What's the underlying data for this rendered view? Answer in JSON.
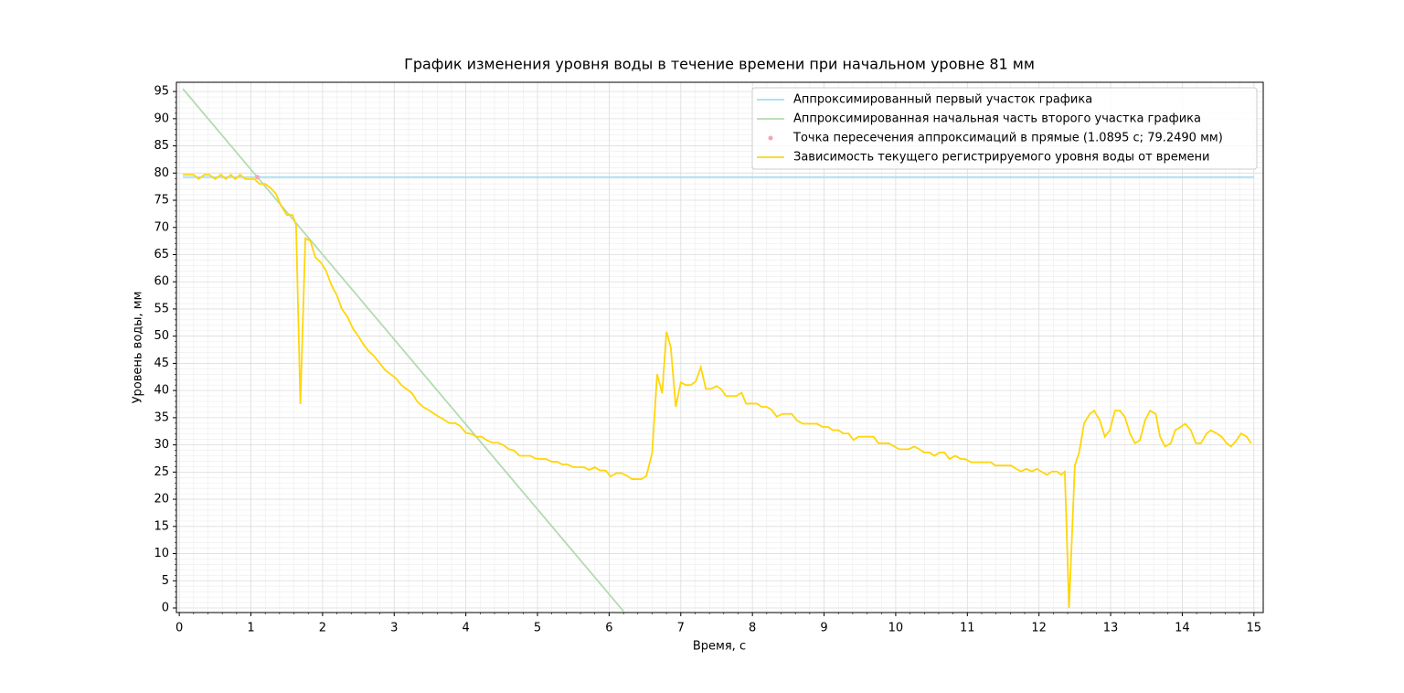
{
  "chart_data": {
    "type": "line",
    "title": "График изменения уровня воды в течение времени при начальном уровне 81 мм",
    "xlabel": "Время, с",
    "ylabel": "Уровень воды, мм",
    "xlim": [
      -0.04,
      15.13
    ],
    "ylim": [
      -0.84,
      96.7
    ],
    "xticks": [
      0,
      1,
      2,
      3,
      4,
      5,
      6,
      7,
      8,
      9,
      10,
      11,
      12,
      13,
      14,
      15
    ],
    "yticks": [
      0,
      5,
      10,
      15,
      20,
      25,
      30,
      35,
      40,
      45,
      50,
      55,
      60,
      65,
      70,
      75,
      80,
      85,
      90,
      95
    ],
    "grid": true,
    "minor_grid": true,
    "legend": "upper right",
    "series": [
      {
        "name": "Аппроксимированный первый участок графика",
        "kind": "line",
        "color": "#a6dcef",
        "x": [
          0.05,
          15.0
        ],
        "values": [
          79.249,
          79.249
        ]
      },
      {
        "name": "Аппроксимированная начальная часть второго участка графика",
        "kind": "line",
        "color": "#b3dbb0",
        "x": [
          0.05,
          6.2
        ],
        "values": [
          95.5,
          -0.6
        ]
      },
      {
        "name": "Точка пересечения аппроксимаций в прямые (1.0895 с; 79.2490 мм)",
        "kind": "scatter",
        "color": "#f2a7b4",
        "x": [
          1.0895
        ],
        "values": [
          79.249
        ]
      },
      {
        "name": "Зависимость текущего регистрируемого уровня воды от времени",
        "kind": "line",
        "color": "#ffd60a",
        "x": [
          0.05,
          0.15,
          0.2,
          0.27,
          0.35,
          0.42,
          0.5,
          0.58,
          0.65,
          0.72,
          0.78,
          0.85,
          0.92,
          1.05,
          1.12,
          1.2,
          1.27,
          1.35,
          1.42,
          1.5,
          1.58,
          1.63,
          1.69,
          1.76,
          1.83,
          1.9,
          1.98,
          2.05,
          2.12,
          2.2,
          2.27,
          2.35,
          2.42,
          2.5,
          2.57,
          2.64,
          2.72,
          2.8,
          2.87,
          2.95,
          3.02,
          3.1,
          3.17,
          3.25,
          3.32,
          3.4,
          3.47,
          3.55,
          3.62,
          3.7,
          3.77,
          3.85,
          3.92,
          4.0,
          4.08,
          4.15,
          4.22,
          4.3,
          4.37,
          4.45,
          4.52,
          4.6,
          4.67,
          4.75,
          4.82,
          4.9,
          4.97,
          5.05,
          5.12,
          5.2,
          5.27,
          5.35,
          5.42,
          5.5,
          5.57,
          5.65,
          5.72,
          5.8,
          5.87,
          5.95,
          6.02,
          6.1,
          6.17,
          6.25,
          6.32,
          6.45,
          6.52,
          6.6,
          6.67,
          6.74,
          6.8,
          6.86,
          6.93,
          7.0,
          7.07,
          7.14,
          7.21,
          7.28,
          7.35,
          7.42,
          7.5,
          7.56,
          7.63,
          7.78,
          7.85,
          7.91,
          8.06,
          8.13,
          8.2,
          8.27,
          8.34,
          8.42,
          8.55,
          8.62,
          8.7,
          8.9,
          8.98,
          9.06,
          9.12,
          9.2,
          9.27,
          9.34,
          9.41,
          9.48,
          9.69,
          9.76,
          9.9,
          10.05,
          10.18,
          10.26,
          10.33,
          10.4,
          10.47,
          10.54,
          10.61,
          10.68,
          10.75,
          10.83,
          10.91,
          10.97,
          11.05,
          11.33,
          11.39,
          11.61,
          11.68,
          11.75,
          11.82,
          11.9,
          11.97,
          12.03,
          12.11,
          12.18,
          12.25,
          12.31,
          12.36,
          12.42,
          12.5,
          12.56,
          12.63,
          12.71,
          12.77,
          12.85,
          12.92,
          12.99,
          13.06,
          13.13,
          13.2,
          13.27,
          13.34,
          13.41,
          13.48,
          13.55,
          13.63,
          13.69,
          13.76,
          13.84,
          13.9,
          13.98,
          14.04,
          14.12,
          14.19,
          14.26,
          14.34,
          14.4,
          14.48,
          14.55,
          14.62,
          14.68,
          14.76,
          14.82,
          14.9,
          14.96
        ],
        "values": [
          79.7,
          79.7,
          79.7,
          78.9,
          79.7,
          79.7,
          78.9,
          79.7,
          78.9,
          79.7,
          78.9,
          79.7,
          78.9,
          78.9,
          78.0,
          78.0,
          77.3,
          76.2,
          74.0,
          72.3,
          72.3,
          70.5,
          37.5,
          68.0,
          67.5,
          64.5,
          63.5,
          62.0,
          59.5,
          57.5,
          55.0,
          53.5,
          51.5,
          50.0,
          48.5,
          47.3,
          46.3,
          45.0,
          43.8,
          43.0,
          42.3,
          41.0,
          40.3,
          39.5,
          38.0,
          37.0,
          36.5,
          35.8,
          35.2,
          34.6,
          34.0,
          34.0,
          33.5,
          32.2,
          32.0,
          31.5,
          31.5,
          30.8,
          30.4,
          30.4,
          30.0,
          29.2,
          29.0,
          28.0,
          28.0,
          28.0,
          27.5,
          27.4,
          27.4,
          26.9,
          26.9,
          26.4,
          26.4,
          25.9,
          25.9,
          25.9,
          25.4,
          25.9,
          25.3,
          25.3,
          24.2,
          24.8,
          24.8,
          24.3,
          23.7,
          23.7,
          24.3,
          28.5,
          43.0,
          39.5,
          50.8,
          48.0,
          37.0,
          41.5,
          41.0,
          41.0,
          41.7,
          44.3,
          40.3,
          40.3,
          40.8,
          40.3,
          39.0,
          39.0,
          39.6,
          37.6,
          37.6,
          37.0,
          37.0,
          36.4,
          35.2,
          35.7,
          35.7,
          34.5,
          33.9,
          33.9,
          33.3,
          33.3,
          32.7,
          32.7,
          32.1,
          32.1,
          30.9,
          31.5,
          31.5,
          30.3,
          30.3,
          29.2,
          29.2,
          29.7,
          29.2,
          28.6,
          28.6,
          28.0,
          28.6,
          28.6,
          27.4,
          28.0,
          27.4,
          27.4,
          26.8,
          26.8,
          26.2,
          26.2,
          25.6,
          25.1,
          25.6,
          25.1,
          25.6,
          25.1,
          24.5,
          25.1,
          25.1,
          24.5,
          25.1,
          0,
          26.2,
          28.6,
          34.0,
          35.7,
          36.3,
          34.5,
          31.5,
          32.7,
          36.3,
          36.3,
          35.1,
          32.1,
          30.3,
          30.9,
          34.5,
          36.3,
          35.7,
          31.5,
          29.7,
          30.3,
          32.7,
          33.3,
          33.9,
          32.7,
          30.3,
          30.3,
          32.1,
          32.7,
          32.1,
          31.5,
          30.3,
          29.7,
          30.9,
          32.1,
          31.5,
          30.3
        ]
      }
    ]
  }
}
